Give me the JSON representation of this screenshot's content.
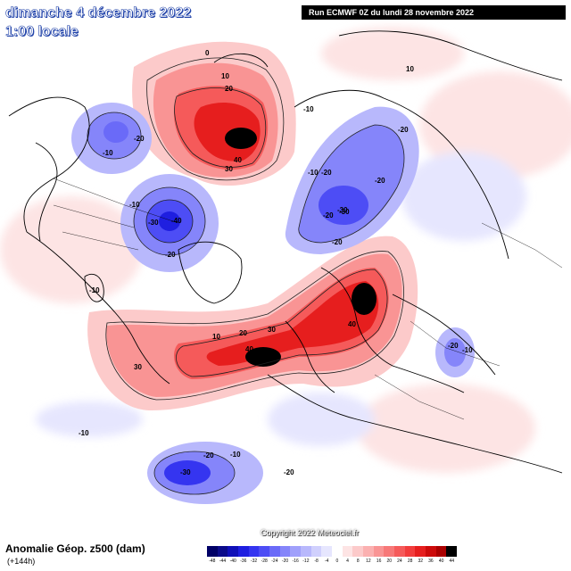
{
  "header": {
    "date": "dimanche 4 décembre 2022",
    "local_time": "1:00 locale",
    "run_info": "Run ECMWF 0Z du lundi 28 novembre 2022"
  },
  "footer": {
    "parameter": "Anomalie Géop. z500 (dam)",
    "lead_time": "(+144h)",
    "copyright": "Copyright 2022 Meteociel.fr"
  },
  "legend": {
    "ticks": [
      "-48",
      "-44",
      "-40",
      "-36",
      "-32",
      "-28",
      "-24",
      "-20",
      "-16",
      "-12",
      "-8",
      "-4",
      "0",
      "4",
      "8",
      "12",
      "16",
      "20",
      "24",
      "28",
      "32",
      "36",
      "40",
      "44"
    ],
    "colors": [
      "#000066",
      "#0b0b8a",
      "#1010b8",
      "#1f1fe0",
      "#3535f0",
      "#4d4df5",
      "#6a6af8",
      "#8585fa",
      "#a0a0fb",
      "#b8b8fc",
      "#d0d0fd",
      "#e6e6fe",
      "#ffffff",
      "#fde4e4",
      "#fccaca",
      "#fbb0b0",
      "#f99494",
      "#f77878",
      "#f55a5a",
      "#f23c3c",
      "#e61e1e",
      "#cc0a0a",
      "#aa0000",
      "#000000"
    ]
  },
  "map": {
    "contour_labels": [
      {
        "id": "us-north",
        "text": "0"
      },
      {
        "id": "scan-10",
        "text": "10"
      },
      {
        "id": "al-10",
        "text": "-10"
      },
      {
        "id": "al-20",
        "text": "-20"
      },
      {
        "id": "ns-10",
        "text": "-10"
      },
      {
        "id": "ns-20",
        "text": "-20"
      },
      {
        "id": "ns-30",
        "text": "-30"
      },
      {
        "id": "ber-10",
        "text": "10"
      },
      {
        "id": "ber-20",
        "text": "20"
      },
      {
        "id": "ber-30",
        "text": "30"
      },
      {
        "id": "ber-40",
        "text": "40"
      },
      {
        "id": "lab-10",
        "text": "-10"
      },
      {
        "id": "lab-30",
        "text": "-30"
      },
      {
        "id": "lab-40",
        "text": "-40"
      },
      {
        "id": "lab-20",
        "text": "-20"
      },
      {
        "id": "sib-10",
        "text": "-10"
      },
      {
        "id": "sib-20a",
        "text": "-20"
      },
      {
        "id": "sib-20b",
        "text": "-20"
      },
      {
        "id": "sib-30",
        "text": "-30"
      },
      {
        "id": "sib-20c",
        "text": "-20"
      },
      {
        "id": "sib-20d",
        "text": "-20"
      },
      {
        "id": "ural-40",
        "text": "40"
      },
      {
        "id": "atl-30",
        "text": "30"
      },
      {
        "id": "atl-20",
        "text": "20"
      },
      {
        "id": "atl-40",
        "text": "40"
      },
      {
        "id": "atl-10",
        "text": "10"
      },
      {
        "id": "pac-30",
        "text": "30"
      },
      {
        "id": "gl-10",
        "text": "-10"
      },
      {
        "id": "pac-10",
        "text": "-10"
      },
      {
        "id": "pac-20",
        "text": "-20"
      },
      {
        "id": "pac-30b",
        "text": "-30"
      },
      {
        "id": "pac-20b",
        "text": "-20"
      },
      {
        "id": "pac-10b",
        "text": "-10"
      },
      {
        "id": "asia-20",
        "text": "-20"
      },
      {
        "id": "asia-10",
        "text": "-10"
      }
    ]
  }
}
